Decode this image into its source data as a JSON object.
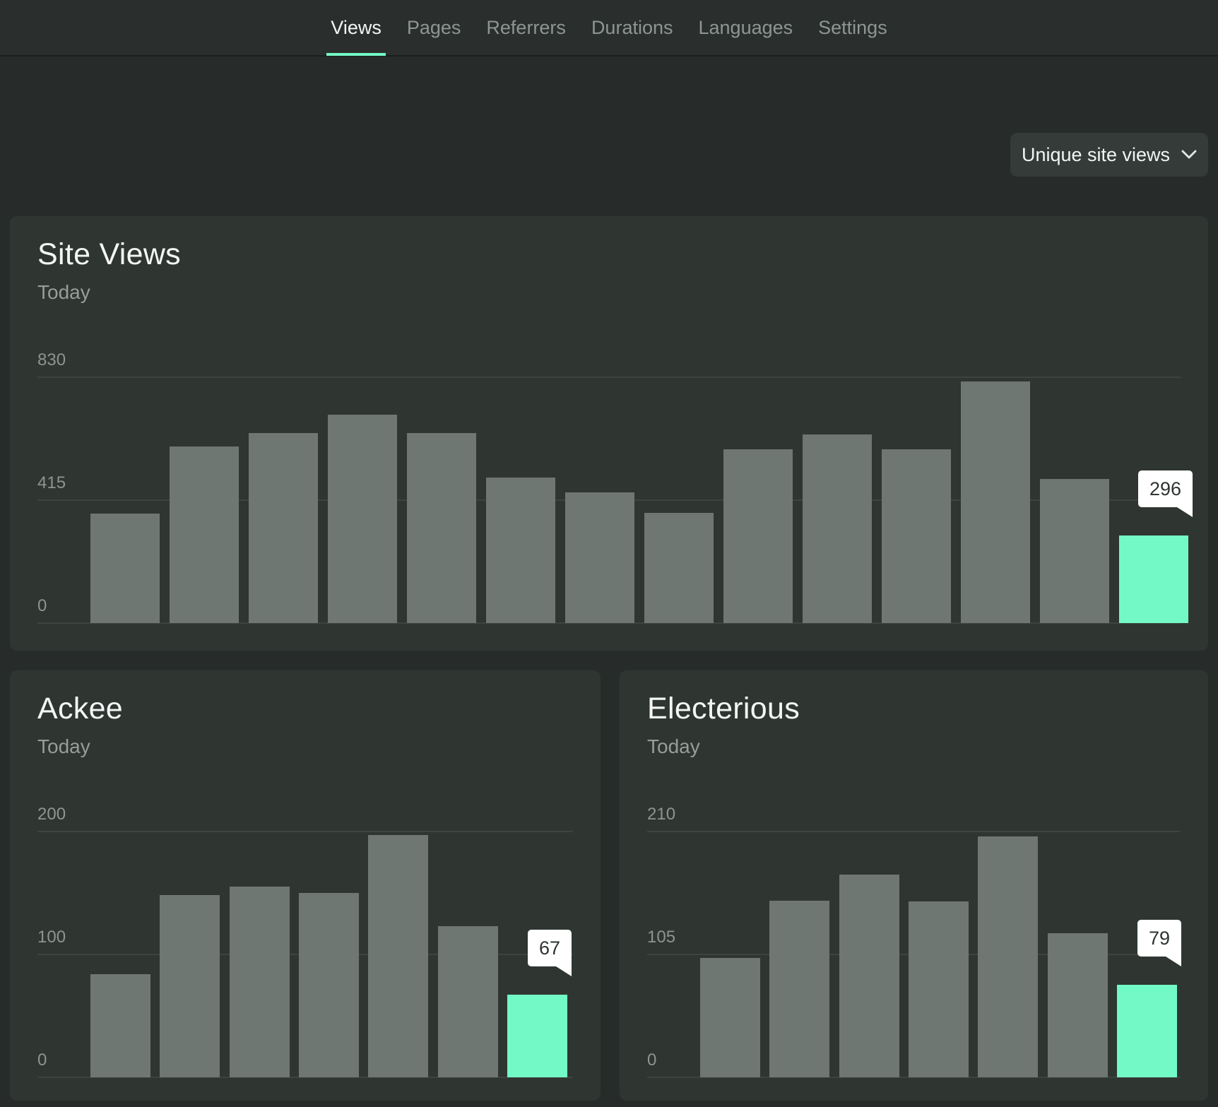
{
  "colors": {
    "accent_green": "#73f9c5",
    "bar_gray": "#6f7772",
    "card_bg": "#2f3632",
    "page_bg": "#272c2a",
    "tooltip_bg": "#ffffff"
  },
  "nav": {
    "items": [
      {
        "label": "Views",
        "active": true
      },
      {
        "label": "Pages",
        "active": false
      },
      {
        "label": "Referrers",
        "active": false
      },
      {
        "label": "Durations",
        "active": false
      },
      {
        "label": "Languages",
        "active": false
      },
      {
        "label": "Settings",
        "active": false
      }
    ]
  },
  "filter": {
    "selected": "Unique site views",
    "chevron_icon": "chevron-down"
  },
  "chart_data": [
    {
      "id": "site_views",
      "type": "bar",
      "title": "Site Views",
      "subtitle": "Today",
      "ylim": [
        0,
        830
      ],
      "y_ticks": [
        830,
        415,
        0
      ],
      "values": [
        370,
        596,
        642,
        704,
        642,
        491,
        441,
        372,
        587,
        637,
        587,
        816,
        487,
        296
      ],
      "highlight_index": 13,
      "highlight_label": "296",
      "grid": "horizontal",
      "legend": "none"
    },
    {
      "id": "ackee",
      "type": "bar",
      "title": "Ackee",
      "subtitle": "Today",
      "ylim": [
        0,
        200
      ],
      "y_ticks": [
        200,
        100,
        0
      ],
      "values": [
        84,
        148,
        155,
        150,
        197,
        123,
        67
      ],
      "highlight_index": 6,
      "highlight_label": "67",
      "grid": "horizontal",
      "legend": "none"
    },
    {
      "id": "electerious",
      "type": "bar",
      "title": "Electerious",
      "subtitle": "Today",
      "ylim": [
        0,
        210
      ],
      "y_ticks": [
        210,
        105,
        0
      ],
      "values": [
        102,
        151,
        173,
        150,
        206,
        123,
        79
      ],
      "highlight_index": 6,
      "highlight_label": "79",
      "grid": "horizontal",
      "legend": "none"
    }
  ]
}
